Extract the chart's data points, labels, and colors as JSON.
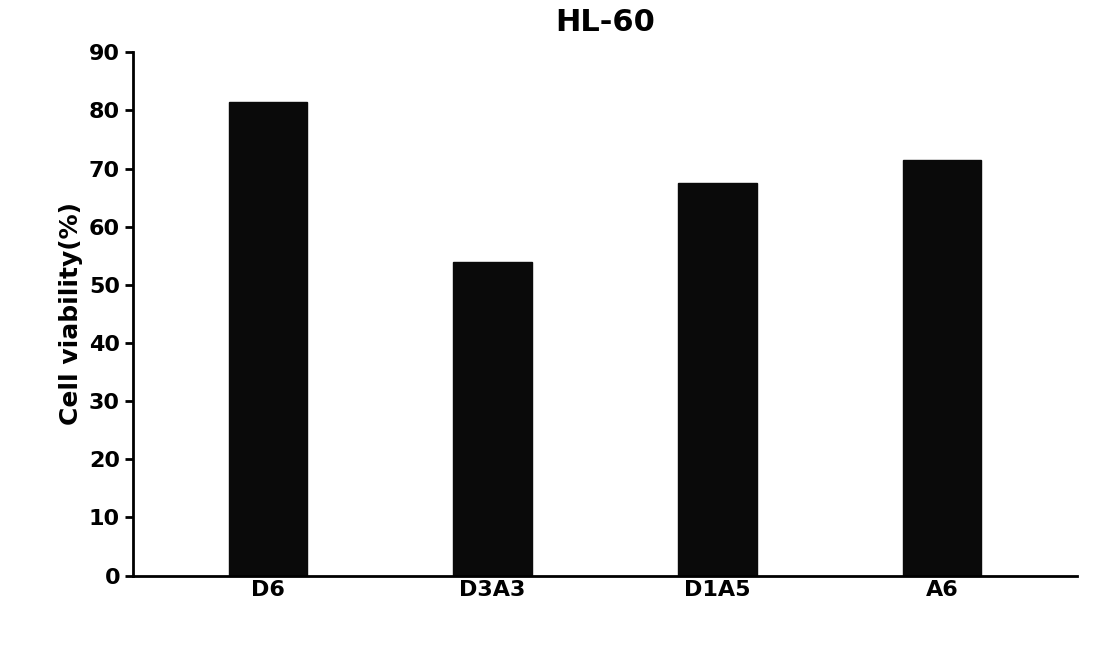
{
  "title": "HL-60",
  "categories": [
    "D6",
    "D3A3",
    "D1A5",
    "A6"
  ],
  "values": [
    81.5,
    54.0,
    67.5,
    71.5
  ],
  "bar_color": "#0a0a0a",
  "ylabel": "Cell viability(%)",
  "ylim": [
    0,
    90
  ],
  "yticks": [
    0,
    10,
    20,
    30,
    40,
    50,
    60,
    70,
    80,
    90
  ],
  "title_fontsize": 22,
  "axis_label_fontsize": 18,
  "tick_fontsize": 16,
  "bar_width": 0.35,
  "background_color": "#ffffff"
}
